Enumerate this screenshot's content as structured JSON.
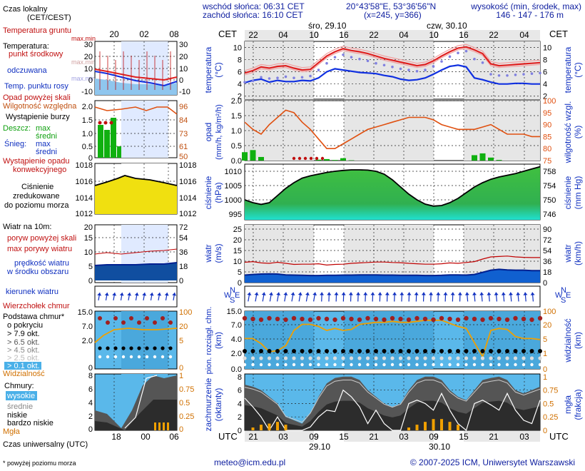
{
  "header": {
    "sunrise": "wschód słońca: 06:31 CET",
    "sunset": "zachód słońca: 16:10 CET",
    "coords": "20°43'58\"E, 53°36'56\"N",
    "grid": "(x=245,  y=366)",
    "elev_label": "wysokość (min, środek, max)",
    "elev_values": "146 - 147 - 176 m"
  },
  "footer": {
    "email": "meteo@icm.edu.pl",
    "copyright": "© 2007-2025 ICM, Uniwersytet Warszawski",
    "note": "* powyżej poziomu morza",
    "utc_caption": "Czas uniwersalny (UTC)"
  },
  "legend": {
    "local_time": "Czas lokalny",
    "local_time_zone": "(CET/CEST)",
    "soil_temp": "Temperatura gruntu",
    "soil_temp_sub": "max.min",
    "temperature": "Temperatura:",
    "midpoint": "punkt środkowy",
    "maxmin": "max.min",
    "perceived": "odczuwana",
    "maxmin2": "max.min",
    "dewpoint": "Temp. punktu rosy",
    "precip_above": "Opad powyżej skali",
    "humidity": "Wilgotność względna",
    "storm": "Wystąpienie burzy",
    "rain": "Deszcz:",
    "rain_max": "max",
    "rain_mid": "średni",
    "snow": "Śnieg:",
    "snow_max": "max",
    "snow_mid": "średni",
    "precip_occ1": "Wystąpienie opadu",
    "precip_occ2": "konwekcyjnego",
    "pressure1": "Ciśnienie",
    "pressure2": "zredukowane",
    "pressure3": "do poziomu morza",
    "wind10": "Wiatr na 10m:",
    "gust_above": "poryw powyżej skali",
    "max_gust": "max porywy wiatru",
    "mean_speed1": "prędkość wiatru",
    "mean_speed2": "w środku obszaru",
    "wind_dir": "kierunek wiatru",
    "cloud_top": "Wierzchołek chmur",
    "cloud_base1": "Podstawa chmur*",
    "cloud_base2": "o pokryciu",
    "okt79": "> 7.9 okt.",
    "okt65": "> 6.5 okt.",
    "okt45": "> 4.5 okt.",
    "okt25": "> 2.5 okt.",
    "okt01": "> 0.1 okt.",
    "visibility": "Widzialność",
    "clouds": "Chmury:",
    "high": "wysokie",
    "mid": "średnie",
    "low": "niskie",
    "very_low": "bardzo niskie",
    "fog": "Mgła"
  },
  "axis_labels": {
    "cet": "CET",
    "utc": "UTC",
    "day1": "śro, 29.10",
    "day2": "czw, 30.10",
    "date1": "29.10",
    "date2": "30.10",
    "compass_n": "N",
    "compass_e": "E",
    "compass_s": "S",
    "compass_w": "W",
    "temp_left": "temperatura",
    "temp_left_u": "(°C)",
    "temp_right": "temperatura",
    "temp_right_u": "(°C)",
    "prec_left": "opad",
    "prec_left_u": "(mm/h, kg/m²/h)",
    "prec_right": "wilgotność wzgl.",
    "prec_right_u": "(%)",
    "pres_left": "ciśnienie",
    "pres_left_u": "(hPa)",
    "pres_right": "ciśnienie",
    "pres_right_u": "(mm Hg)",
    "wind_left": "wiatr",
    "wind_left_u": "(m/s)",
    "wind_right": "wiatr",
    "wind_right_u": "(km/h)",
    "vis_left": "pion. rozciągł. chm.",
    "vis_left_u": "(km)",
    "vis_right": "widzialność",
    "vis_right_u": "(km)",
    "cl_left": "zachmurzenie",
    "cl_left_u": "(oktanty)",
    "cl_right": "mgła",
    "cl_right_u": "(frakcja)"
  },
  "colors": {
    "temp": "#e02020",
    "dew": "#1030e0",
    "humidity": "#e05010",
    "rain": "#10b010",
    "pressure_fill": "#3ec03e",
    "wind_mean": "#0840c0",
    "gust": "#c00000",
    "visibility": "#f0a000"
  },
  "chart_data": {
    "type": "line",
    "cet_ticks": [
      "22",
      "04",
      "10",
      "16",
      "22",
      "04",
      "10",
      "16",
      "22",
      "04"
    ],
    "utc_ticks": [
      "21",
      "03",
      "09",
      "15",
      "21",
      "03",
      "09",
      "15",
      "21",
      "03"
    ],
    "temp_axis": [
      "10",
      "8",
      "6",
      "4",
      "2"
    ],
    "prec_axis": [
      "2.0",
      "1.5",
      "1.0",
      "0.5",
      "0.0"
    ],
    "hum_axis": [
      "100",
      "95",
      "90",
      "85",
      "80",
      "75"
    ],
    "pres_axis": [
      "1010",
      "1005",
      "1000",
      "995"
    ],
    "presmm_axis": [
      "758",
      "754",
      "750",
      "746"
    ],
    "wind_axis": [
      "25",
      "20",
      "15",
      "10",
      "5",
      "0"
    ],
    "windkm_axis": [
      "90",
      "72",
      "54",
      "36",
      "18",
      "0"
    ],
    "vis_axis": [
      "15.0",
      "7.0",
      "4.0",
      "2.0",
      "0.0"
    ],
    "visr_axis": [
      "100",
      "20",
      "5",
      "1",
      "0"
    ],
    "cloud_axis": [
      "8",
      "6",
      "4",
      "2",
      "0"
    ],
    "fog_axis": [
      "1",
      "0.75",
      "0.5",
      "0.25",
      "0"
    ],
    "sm_cet_ticks": [
      "20",
      "02",
      "08"
    ],
    "sm_utc_ticks": [
      "18",
      "00",
      "06"
    ],
    "sm_temp_axis": [
      "30",
      "20",
      "10",
      "0",
      "-10"
    ],
    "sm_prec_axis": [
      "2.0",
      "1.5",
      "1.0",
      "0.5",
      "0"
    ],
    "sm_hum_axis": [
      "96",
      "84",
      "73",
      "61",
      "50"
    ],
    "sm_pres_axis": [
      "1018",
      "1016",
      "1014",
      "1012"
    ],
    "sm_wind_axis": [
      "20",
      "15",
      "10",
      "5",
      "0"
    ],
    "sm_windkm_axis": [
      "72",
      "54",
      "36",
      "18",
      "0"
    ],
    "sm_vis_axis": [
      "15.0",
      "7.0",
      "2.0",
      "0"
    ],
    "sm_visr_axis": [
      "100",
      "20",
      "5",
      "0"
    ],
    "sm_cloud_axis": [
      "8",
      "6",
      "4",
      "2",
      "0"
    ],
    "sm_fog_axis": [
      "1",
      "0.75",
      "0.5",
      "0.25",
      "0"
    ],
    "temperature": [
      5.8,
      6.2,
      6.8,
      6.6,
      6.9,
      7.0,
      6.6,
      6.3,
      6.4,
      7.5,
      8.6,
      9.3,
      9.8,
      9.5,
      9.3,
      9.0,
      8.6,
      8.2,
      7.9,
      7.6,
      7.3,
      7.0,
      7.2,
      7.8,
      8.6,
      9.3,
      9.9,
      10.1,
      9.6,
      9.0,
      7.3,
      7.0,
      7.1,
      7.2,
      7.3,
      7.4,
      7.5
    ],
    "dewpoint": [
      4.2,
      4.6,
      4.8,
      4.3,
      4.6,
      4.4,
      4.4,
      4.6,
      4.5,
      5.0,
      6.0,
      6.5,
      6.3,
      6.1,
      5.9,
      5.8,
      5.7,
      5.4,
      5.2,
      4.8,
      4.6,
      4.7,
      5.0,
      5.6,
      6.3,
      6.9,
      7.1,
      6.8,
      5.0,
      4.7,
      4.3,
      4.0,
      4.0,
      4.1,
      4.1,
      4.0,
      4.0
    ],
    "perceived": [
      4.3,
      4.5,
      5.1,
      4.9,
      5.0,
      5.2,
      5.0,
      5.1,
      5.3,
      6.3,
      7.4,
      8.4,
      8.8,
      8.4,
      8.1,
      7.8,
      7.4,
      7.1,
      6.8,
      6.5,
      6.3,
      6.1,
      6.3,
      6.9,
      7.7,
      8.5,
      9.1,
      9.4,
      8.1,
      7.5,
      5.6,
      5.4,
      5.4,
      5.5,
      5.6,
      5.7,
      5.8
    ],
    "humidity": [
      91,
      88,
      86,
      90,
      93,
      96,
      95,
      91,
      88,
      84,
      80,
      80,
      82,
      84,
      86,
      88,
      89,
      90,
      91,
      92,
      93,
      93,
      93,
      92,
      90,
      89,
      88,
      88,
      88,
      89,
      90,
      88,
      86,
      86,
      86,
      85,
      85
    ],
    "precipitation": [
      0.28,
      0.35,
      0.12,
      0,
      0,
      0,
      0,
      0,
      0,
      0.03,
      0.05,
      0.02,
      0.08,
      0.01,
      0,
      0,
      0,
      0,
      0,
      0,
      0,
      0,
      0,
      0,
      0,
      0,
      0,
      0,
      0.18,
      0.24,
      0.1,
      0.02,
      0,
      0,
      0,
      0,
      0
    ],
    "pressure": [
      1000.0,
      999.0,
      998.4,
      999.0,
      1001.5,
      1004.0,
      1006.0,
      1007.6,
      1008.4,
      1009.0,
      1009.6,
      1010.0,
      1010.3,
      1010.5,
      1010.5,
      1010.4,
      1010.0,
      1009.0,
      1007.0,
      1004.5,
      1002.0,
      1000.0,
      998.5,
      997.8,
      998.0,
      999.0,
      1000.5,
      1002.5,
      1004.5,
      1006.0,
      1007.2,
      1008.0,
      1008.6,
      1009.2,
      1010.0,
      1010.8,
      1011.6
    ],
    "wind_mean": [
      3.5,
      3.8,
      4.0,
      4.1,
      4.0,
      3.6,
      3.5,
      3.4,
      3.3,
      3.3,
      3.4,
      3.4,
      3.5,
      3.5,
      3.6,
      3.6,
      3.6,
      3.5,
      3.5,
      3.4,
      3.4,
      3.4,
      3.3,
      3.3,
      3.4,
      3.6,
      3.6,
      3.5,
      3.8,
      4.8,
      5.8,
      6.2,
      5.9,
      5.8,
      5.8,
      5.6,
      5.6
    ],
    "wind_gust": [
      9.5,
      9.8,
      9.2,
      9.0,
      9.5,
      9.0,
      8.5,
      8.6,
      8.6,
      8.8,
      8.2,
      8.5,
      8.6,
      9.0,
      9.2,
      9.4,
      9.6,
      9.6,
      9.4,
      9.3,
      9.0,
      8.8,
      8.6,
      8.6,
      8.8,
      9.2,
      9.0,
      9.4,
      9.8,
      11.0,
      12.0,
      12.2,
      12.4,
      12.0,
      11.8,
      11.7,
      11.7
    ],
    "visibility": [
      3.0,
      3.0,
      2.5,
      1.7,
      1.8,
      2.3,
      3.8,
      4.4,
      4.4,
      4.2,
      3.8,
      4.0,
      3.8,
      3.9,
      4.4,
      4.5,
      4.6,
      4.6,
      4.7,
      4.6,
      4.6,
      4.7,
      4.8,
      4.8,
      4.8,
      4.5,
      4.2,
      4.0,
      2.6,
      1.2,
      3.8,
      4.0,
      3.9,
      3.2,
      3.0,
      3.0,
      2.9
    ],
    "cloud_total": [
      6.8,
      6.5,
      6.0,
      5.0,
      4.0,
      2.0,
      1.5,
      1.0,
      2.5,
      5.0,
      7.0,
      7.8,
      8.0,
      8.0,
      7.5,
      6.0,
      5.0,
      4.0,
      3.5,
      4.0,
      6.0,
      7.5,
      8.0,
      8.0,
      7.5,
      6.0,
      5.0,
      4.5,
      6.0,
      7.5,
      7.8,
      8.0,
      7.5,
      6.0,
      5.5,
      6.0,
      6.5
    ],
    "fog": [
      0,
      0.05,
      0.1,
      0.12,
      0.15,
      0.1,
      0,
      0,
      0,
      0,
      0,
      0,
      0,
      0,
      0,
      0,
      0,
      0,
      0,
      0,
      0.05,
      0.1,
      0.15,
      0.2,
      0.2,
      0.15,
      0.1,
      0,
      0,
      0,
      0,
      0,
      0,
      0,
      0,
      0,
      0
    ]
  }
}
